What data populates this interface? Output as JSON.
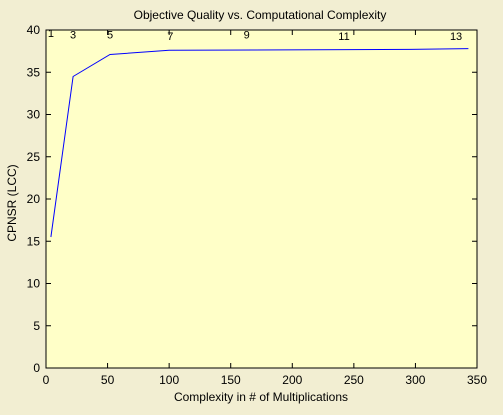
{
  "colors": {
    "background": "#f2eed2",
    "axes_background": "#ffffc8",
    "axes_frame": "#000000",
    "line": "#0000ff"
  },
  "chart_data": {
    "type": "line",
    "title": "Objective Quality vs. Computational Complexity",
    "xlabel": "Complexity in # of Multiplications",
    "ylabel": "CPNSR (LCC)",
    "xlim": [
      0,
      350
    ],
    "ylim": [
      0,
      40
    ],
    "xticks": [
      0,
      50,
      100,
      150,
      200,
      250,
      300,
      350
    ],
    "yticks": [
      0,
      5,
      10,
      15,
      20,
      25,
      30,
      35,
      40
    ],
    "grid": false,
    "series": [
      {
        "x": [
          4,
          22,
          52,
          100,
          296,
          343
        ],
        "y": [
          15.5,
          34.5,
          37.1,
          37.6,
          37.7,
          37.8
        ]
      }
    ],
    "annotations": [
      {
        "text": "1",
        "x": 4,
        "y": 39.2
      },
      {
        "text": "3",
        "x": 22,
        "y": 39.0
      },
      {
        "text": "5",
        "x": 52,
        "y": 39.0
      },
      {
        "text": "7",
        "x": 101,
        "y": 38.8
      },
      {
        "text": "9",
        "x": 163,
        "y": 39.0
      },
      {
        "text": "11",
        "x": 242,
        "y": 38.8
      },
      {
        "text": "13",
        "x": 333,
        "y": 38.8
      }
    ]
  }
}
